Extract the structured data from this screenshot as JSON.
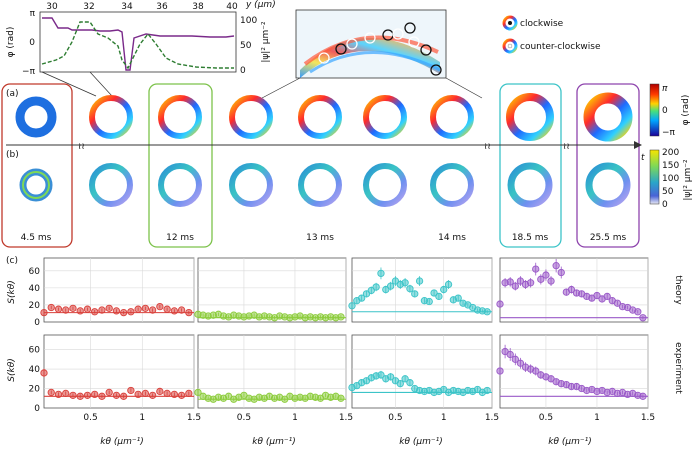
{
  "figure": {
    "panel_a": "(a)",
    "panel_b": "(b)",
    "panel_c": "(c)",
    "inset": {
      "y_axis_label": "y (μm)",
      "x_ticks": [
        "30",
        "32",
        "34",
        "36",
        "38",
        "40"
      ],
      "left_ticks": [
        "π",
        "0",
        "−π"
      ],
      "left_label": "φ (rad)",
      "right_ticks": [
        "100",
        "50",
        "0"
      ],
      "right_label": "|ψ|² μm⁻²"
    },
    "legend": {
      "clockwise": "clockwise",
      "counter_clockwise": "counter-clockwise"
    },
    "time_axis_label": "t",
    "times": [
      "4.5 ms",
      "12 ms",
      "13 ms",
      "14 ms",
      "18.5 ms",
      "25.5 ms"
    ],
    "colorbar_phase": {
      "label": "φ (rad)",
      "top": "π",
      "mid": "0",
      "bottom": "−π"
    },
    "colorbar_density": {
      "label": "|ψ|² μm⁻²",
      "ticks": [
        "200",
        "150",
        "100",
        "50",
        "0"
      ]
    },
    "row_labels": {
      "theory": "theory",
      "experiment": "experiment"
    },
    "ylabel": "S(kθ)",
    "xlabel": "kθ (μm⁻¹)",
    "y_ticks": [
      "0",
      "20",
      "40",
      "60"
    ],
    "x_ticks": [
      "0.5",
      "1",
      "1.5"
    ],
    "colors": {
      "red": "#d9403b",
      "green": "#8ccc3c",
      "cyan": "#3cc4c8",
      "purple": "#9a5ac8",
      "box_red": "#c0392b",
      "box_green": "#7cc24a",
      "box_cyan": "#3cc4c8",
      "box_purple": "#8e44ad"
    }
  },
  "chart_data": [
    {
      "type": "scatter",
      "title": "theory 12 ms",
      "ylim": [
        0,
        75
      ],
      "xlim": [
        0.05,
        1.5
      ],
      "x": [
        0.05,
        0.12,
        0.19,
        0.26,
        0.33,
        0.4,
        0.47,
        0.54,
        0.61,
        0.68,
        0.75,
        0.82,
        0.89,
        0.96,
        1.03,
        1.1,
        1.17,
        1.24,
        1.31,
        1.38,
        1.45
      ],
      "values": [
        11,
        17,
        15,
        14,
        16,
        13,
        15,
        12,
        14,
        16,
        13,
        11,
        12,
        15,
        16,
        14,
        18,
        15,
        13,
        14,
        11
      ]
    },
    {
      "type": "scatter",
      "title": "theory 13 ms",
      "ylim": [
        0,
        75
      ],
      "xlim": [
        0.05,
        1.5
      ],
      "x": [
        0.05,
        0.1,
        0.15,
        0.2,
        0.25,
        0.3,
        0.35,
        0.4,
        0.45,
        0.5,
        0.55,
        0.6,
        0.65,
        0.7,
        0.75,
        0.8,
        0.85,
        0.9,
        0.95,
        1.0,
        1.05,
        1.1,
        1.15,
        1.2,
        1.25,
        1.3,
        1.35,
        1.4,
        1.45
      ],
      "values": [
        9,
        8,
        7,
        8,
        9,
        7,
        6,
        8,
        7,
        6,
        7,
        8,
        6,
        7,
        6,
        5,
        7,
        6,
        5,
        6,
        7,
        5,
        6,
        5,
        6,
        5,
        6,
        5,
        6
      ]
    },
    {
      "type": "scatter",
      "title": "theory 14 ms",
      "ylim": [
        0,
        75
      ],
      "xlim": [
        0.05,
        1.5
      ],
      "x": [
        0.05,
        0.1,
        0.15,
        0.2,
        0.25,
        0.3,
        0.35,
        0.4,
        0.45,
        0.5,
        0.55,
        0.6,
        0.65,
        0.7,
        0.75,
        0.8,
        0.85,
        0.9,
        0.95,
        1.0,
        1.05,
        1.1,
        1.15,
        1.2,
        1.25,
        1.3,
        1.35,
        1.4,
        1.45
      ],
      "values": [
        19,
        25,
        28,
        33,
        37,
        41,
        57,
        38,
        42,
        48,
        44,
        46,
        39,
        33,
        48,
        25,
        24,
        34,
        30,
        38,
        44,
        26,
        28,
        22,
        20,
        17,
        14,
        13,
        12
      ]
    },
    {
      "type": "scatter",
      "title": "theory 25.5 ms",
      "ylim": [
        0,
        75
      ],
      "xlim": [
        0.05,
        1.5
      ],
      "x": [
        0.05,
        0.1,
        0.15,
        0.2,
        0.25,
        0.3,
        0.35,
        0.4,
        0.45,
        0.5,
        0.55,
        0.6,
        0.65,
        0.7,
        0.75,
        0.8,
        0.85,
        0.9,
        0.95,
        1.0,
        1.05,
        1.1,
        1.15,
        1.2,
        1.25,
        1.3,
        1.35,
        1.4,
        1.45
      ],
      "values": [
        21,
        46,
        47,
        42,
        48,
        44,
        46,
        62,
        50,
        55,
        48,
        66,
        58,
        35,
        38,
        34,
        33,
        30,
        28,
        31,
        27,
        30,
        25,
        22,
        18,
        17,
        14,
        12,
        5
      ]
    },
    {
      "type": "scatter",
      "title": "experiment 12 ms",
      "ylim": [
        0,
        75
      ],
      "xlim": [
        0.05,
        1.5
      ],
      "x": [
        0.05,
        0.12,
        0.19,
        0.26,
        0.33,
        0.4,
        0.47,
        0.54,
        0.61,
        0.68,
        0.75,
        0.82,
        0.89,
        0.96,
        1.03,
        1.1,
        1.17,
        1.24,
        1.31,
        1.38,
        1.45
      ],
      "values": [
        36,
        16,
        14,
        15,
        13,
        12,
        13,
        14,
        12,
        16,
        13,
        12,
        18,
        14,
        15,
        13,
        17,
        15,
        14,
        13,
        15
      ]
    },
    {
      "type": "scatter",
      "title": "experiment 13 ms",
      "ylim": [
        0,
        75
      ],
      "xlim": [
        0.05,
        1.5
      ],
      "x": [
        0.05,
        0.1,
        0.15,
        0.2,
        0.25,
        0.3,
        0.35,
        0.4,
        0.45,
        0.5,
        0.55,
        0.6,
        0.65,
        0.7,
        0.75,
        0.8,
        0.85,
        0.9,
        0.95,
        1.0,
        1.05,
        1.1,
        1.15,
        1.2,
        1.25,
        1.3,
        1.35,
        1.4,
        1.45
      ],
      "values": [
        16,
        12,
        10,
        9,
        11,
        10,
        12,
        9,
        11,
        13,
        10,
        9,
        11,
        10,
        12,
        10,
        11,
        9,
        12,
        10,
        11,
        10,
        12,
        11,
        10,
        13,
        11,
        12,
        10
      ]
    },
    {
      "type": "scatter",
      "title": "experiment 14 ms",
      "ylim": [
        0,
        75
      ],
      "xlim": [
        0.05,
        1.5
      ],
      "x": [
        0.05,
        0.1,
        0.15,
        0.2,
        0.25,
        0.3,
        0.35,
        0.4,
        0.45,
        0.5,
        0.55,
        0.6,
        0.65,
        0.7,
        0.75,
        0.8,
        0.85,
        0.9,
        0.95,
        1.0,
        1.05,
        1.1,
        1.15,
        1.2,
        1.25,
        1.3,
        1.35,
        1.4,
        1.45
      ],
      "values": [
        21,
        23,
        26,
        28,
        31,
        33,
        34,
        30,
        32,
        28,
        25,
        30,
        26,
        20,
        18,
        17,
        18,
        16,
        17,
        19,
        16,
        18,
        17,
        16,
        18,
        17,
        19,
        16,
        18
      ]
    },
    {
      "type": "scatter",
      "title": "experiment 25.5 ms",
      "ylim": [
        0,
        75
      ],
      "xlim": [
        0.05,
        1.5
      ],
      "x": [
        0.05,
        0.1,
        0.15,
        0.2,
        0.25,
        0.3,
        0.35,
        0.4,
        0.45,
        0.5,
        0.55,
        0.6,
        0.65,
        0.7,
        0.75,
        0.8,
        0.85,
        0.9,
        0.95,
        1.0,
        1.05,
        1.1,
        1.15,
        1.2,
        1.25,
        1.3,
        1.35,
        1.4,
        1.45
      ],
      "values": [
        38,
        58,
        55,
        50,
        46,
        42,
        40,
        38,
        34,
        32,
        30,
        27,
        25,
        24,
        22,
        22,
        20,
        18,
        19,
        17,
        18,
        16,
        17,
        15,
        16,
        14,
        15,
        13,
        12
      ]
    }
  ]
}
